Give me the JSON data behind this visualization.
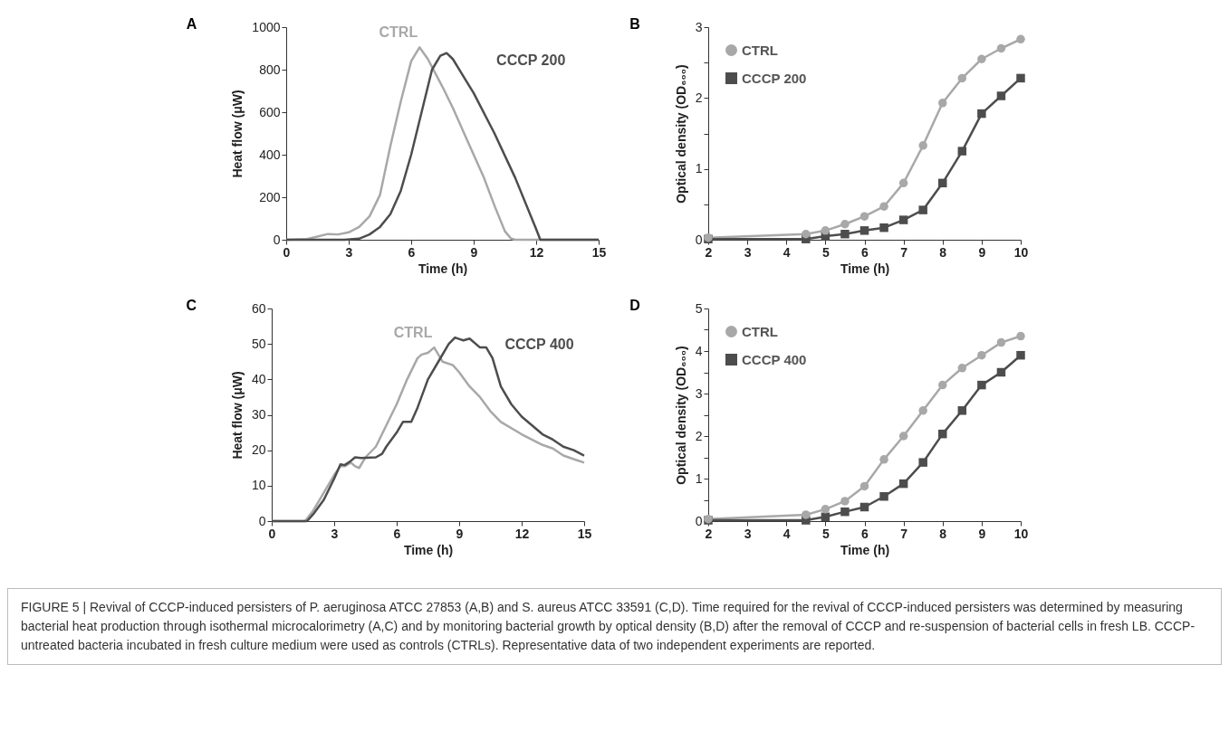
{
  "chart_data": [
    {
      "type": "line",
      "title": "A",
      "xlabel": "Time (h)",
      "ylabel": "Heat flow (μW)",
      "xlim": [
        0,
        15
      ],
      "xticks": [
        0,
        3,
        6,
        9,
        12,
        15
      ],
      "ylim": [
        0,
        1000
      ],
      "yticks": [
        0,
        200,
        400,
        600,
        800,
        1000
      ],
      "legend": false,
      "series": [
        {
          "name": "CTRL",
          "color": "#a8a8a8",
          "x": [
            0,
            1,
            1.5,
            2,
            2.5,
            3,
            3.5,
            4,
            4.5,
            5,
            5.5,
            6,
            6.4,
            6.8,
            7.5,
            8,
            8.5,
            9,
            9.5,
            10,
            10.5,
            10.8,
            11,
            15
          ],
          "values": [
            0,
            3,
            15,
            27,
            25,
            35,
            60,
            110,
            210,
            440,
            650,
            840,
            905,
            850,
            720,
            620,
            510,
            400,
            290,
            160,
            40,
            5,
            0,
            0
          ]
        },
        {
          "name": "CCCP 200",
          "color": "#4d4d4d",
          "x": [
            0,
            2.8,
            3.5,
            4,
            4.5,
            5,
            5.5,
            6,
            6.5,
            7,
            7.4,
            7.7,
            8,
            8.5,
            9,
            10,
            11,
            12,
            12.2,
            15
          ],
          "values": [
            0,
            0,
            5,
            25,
            60,
            120,
            230,
            400,
            600,
            800,
            865,
            878,
            850,
            770,
            690,
            500,
            290,
            50,
            0,
            0
          ]
        }
      ]
    },
    {
      "type": "line",
      "title": "B",
      "xlabel": "Time (h)",
      "ylabel": "Optical density (OD₆₀₀)",
      "xlim": [
        2,
        10
      ],
      "xticks": [
        2,
        3,
        4,
        5,
        6,
        7,
        8,
        9,
        10
      ],
      "ylim": [
        0,
        3
      ],
      "yticks": [
        0,
        {
          "value": 0.5,
          "label": null
        },
        1,
        {
          "value": 1.5,
          "label": null
        },
        2,
        {
          "value": 2.5,
          "label": null
        },
        3
      ],
      "legend": "top left",
      "series": [
        {
          "name": "CTRL",
          "color": "#a8a8a8",
          "marker": "circle",
          "x": [
            2,
            4.5,
            5,
            5.5,
            6,
            6.5,
            7,
            7.5,
            8,
            8.5,
            9,
            9.5,
            10
          ],
          "values": [
            0.03,
            0.08,
            0.13,
            0.22,
            0.33,
            0.47,
            0.8,
            1.33,
            1.93,
            2.28,
            2.55,
            2.7,
            2.83
          ]
        },
        {
          "name": "CCCP 200",
          "color": "#4d4d4d",
          "marker": "square",
          "x": [
            2,
            4.5,
            5,
            5.5,
            6,
            6.5,
            7,
            7.5,
            8,
            8.5,
            9,
            9.5,
            10
          ],
          "values": [
            0.01,
            0.01,
            0.05,
            0.08,
            0.13,
            0.17,
            0.28,
            0.42,
            0.8,
            1.25,
            1.78,
            2.03,
            2.28
          ]
        }
      ]
    },
    {
      "type": "line",
      "title": "C",
      "xlabel": "Time (h)",
      "ylabel": "Heat flow (μW)",
      "xlim": [
        0,
        15
      ],
      "xticks": [
        0,
        3,
        6,
        9,
        12,
        15
      ],
      "ylim": [
        0,
        60
      ],
      "yticks": [
        0,
        10,
        20,
        30,
        40,
        50,
        60
      ],
      "legend": false,
      "series": [
        {
          "name": "CTRL",
          "color": "#a8a8a8",
          "x": [
            0,
            1.6,
            2,
            2.5,
            3,
            3.3,
            3.5,
            3.8,
            4,
            4.2,
            4.5,
            5,
            5.5,
            6,
            6.5,
            7,
            7.2,
            7.5,
            7.8,
            8,
            8.2,
            8.7,
            9,
            9.5,
            10,
            10.5,
            11,
            12,
            13,
            13.5,
            14,
            14.5,
            15
          ],
          "values": [
            0,
            0,
            3,
            8,
            13,
            15.5,
            15.5,
            16.5,
            15.5,
            15,
            18,
            21,
            27,
            33,
            40,
            46,
            47,
            47.5,
            49,
            47,
            45,
            44,
            42,
            38,
            35,
            31,
            28,
            24.5,
            21.5,
            20.5,
            18.5,
            17.5,
            16.5
          ]
        },
        {
          "name": "CCCP 400",
          "color": "#4d4d4d",
          "x": [
            0,
            1.7,
            2,
            2.5,
            3,
            3.3,
            3.5,
            3.8,
            4,
            4.3,
            5,
            5.3,
            5.5,
            6,
            6.3,
            6.7,
            7,
            7.5,
            8,
            8.5,
            8.8,
            9.2,
            9.5,
            10,
            10.3,
            10.6,
            11,
            11.5,
            12,
            12.5,
            13,
            13.5,
            14,
            14.5,
            15
          ],
          "values": [
            0,
            0,
            2,
            6,
            12,
            16,
            15.8,
            17,
            18,
            17.8,
            18,
            19,
            21,
            25,
            28,
            28,
            32,
            40,
            45,
            50,
            51.8,
            51,
            51.5,
            49,
            49,
            46,
            38,
            33,
            29.5,
            27,
            24.5,
            23,
            21,
            20,
            18.5
          ]
        }
      ]
    },
    {
      "type": "line",
      "title": "D",
      "xlabel": "Time (h)",
      "ylabel": "Optical density (OD₆₀₀)",
      "xlim": [
        2,
        10
      ],
      "xticks": [
        2,
        3,
        4,
        5,
        6,
        7,
        8,
        9,
        10
      ],
      "ylim": [
        0,
        5
      ],
      "yticks": [
        0,
        {
          "value": 0.5,
          "label": null
        },
        1,
        {
          "value": 1.5,
          "label": null
        },
        2,
        {
          "value": 2.5,
          "label": null
        },
        3,
        {
          "value": 3.5,
          "label": null
        },
        4,
        {
          "value": 4.5,
          "label": null
        },
        5
      ],
      "legend": "top left",
      "annotations": [
        "FIGURE 5 | Revival of CCCP-induced persisters of P. aeruginosa ATCC 27853 (A,B) and S. aureus ATCC 33591 (C,D). Time required for the revival of CCCP-induced persisters was determined by measuring bacterial heat production through isothermal microcalorimetry (A,C) and by monitoring bacterial growth by optical density (B,D) after the removal of CCCP and re-suspension of bacterial cells in fresh LB. CCCP-untreated bacteria incubated in fresh culture medium were used as controls (CTRLs). Representative data of two independent experiments are reported."
      ],
      "series": [
        {
          "name": "CTRL",
          "color": "#a8a8a8",
          "marker": "circle",
          "x": [
            2,
            4.5,
            5,
            5.5,
            6,
            6.5,
            7,
            7.5,
            8,
            8.5,
            9,
            9.5,
            10
          ],
          "values": [
            0.05,
            0.15,
            0.28,
            0.47,
            0.82,
            1.45,
            2.0,
            2.6,
            3.2,
            3.6,
            3.9,
            4.2,
            4.35
          ]
        },
        {
          "name": "CCCP 400",
          "color": "#4d4d4d",
          "marker": "square",
          "x": [
            2,
            4.5,
            5,
            5.5,
            6,
            6.5,
            7,
            7.5,
            8,
            8.5,
            9,
            9.5,
            10
          ],
          "values": [
            0.02,
            0.02,
            0.1,
            0.22,
            0.33,
            0.58,
            0.88,
            1.38,
            2.05,
            2.6,
            3.2,
            3.5,
            3.9
          ]
        }
      ]
    }
  ]
}
